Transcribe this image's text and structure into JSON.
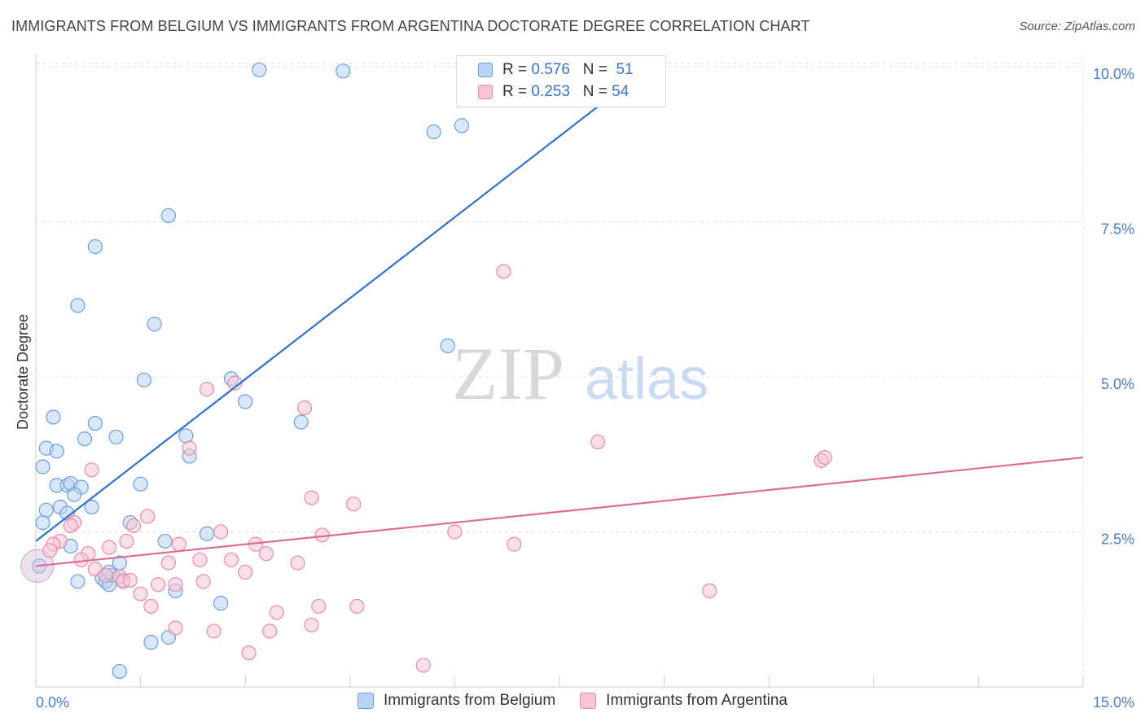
{
  "title": "IMMIGRANTS FROM BELGIUM VS IMMIGRANTS FROM ARGENTINA DOCTORATE DEGREE CORRELATION CHART",
  "source": "Source: ZipAtlas.com",
  "watermark": {
    "zip": "ZIP",
    "atlas": "atlas"
  },
  "legend": {
    "rows": [
      {
        "r_label": "R =",
        "r_value": "0.576",
        "n_label": "N =",
        "n_value": "51"
      },
      {
        "r_label": "R =",
        "r_value": "0.253",
        "n_label": "N =",
        "n_value": "54"
      }
    ]
  },
  "colors": {
    "belgium_fill": "#b9d3f5",
    "belgium_stroke": "#6a9ee0",
    "belgium_line": "#2f72c9",
    "argentina_fill": "#f7c5d4",
    "argentina_stroke": "#e88aa8",
    "argentina_line": "#e06b98",
    "tick_color": "#4a7cc9",
    "grid": "#dddddd"
  },
  "chart_data": {
    "type": "scatter",
    "ylabel": "Doctorate Degree",
    "xlim": [
      0,
      15
    ],
    "ylim": [
      0,
      10.5
    ],
    "x_ticks": [
      "0.0%",
      "15.0%"
    ],
    "y_ticks": [
      {
        "value": 2.5,
        "label": "2.5%"
      },
      {
        "value": 5.0,
        "label": "5.0%"
      },
      {
        "value": 7.5,
        "label": "7.5%"
      },
      {
        "value": 10.0,
        "label": "10.0%"
      }
    ],
    "series": [
      {
        "name": "Immigrants from Belgium",
        "points": [
          [
            3.2,
            9.95
          ],
          [
            4.4,
            9.93
          ],
          [
            5.7,
            8.95
          ],
          [
            6.1,
            9.05
          ],
          [
            1.9,
            7.6
          ],
          [
            0.85,
            7.1
          ],
          [
            0.6,
            6.15
          ],
          [
            1.7,
            5.85
          ],
          [
            5.9,
            5.5
          ],
          [
            1.55,
            4.95
          ],
          [
            2.8,
            4.97
          ],
          [
            3.0,
            4.6
          ],
          [
            0.25,
            4.35
          ],
          [
            0.85,
            4.25
          ],
          [
            3.8,
            4.27
          ],
          [
            0.7,
            4.0
          ],
          [
            1.15,
            4.03
          ],
          [
            2.15,
            4.05
          ],
          [
            0.15,
            3.85
          ],
          [
            0.3,
            3.8
          ],
          [
            2.2,
            3.72
          ],
          [
            0.1,
            3.55
          ],
          [
            0.3,
            3.25
          ],
          [
            0.45,
            3.25
          ],
          [
            0.5,
            3.28
          ],
          [
            0.65,
            3.22
          ],
          [
            0.55,
            3.1
          ],
          [
            1.5,
            3.27
          ],
          [
            0.15,
            2.85
          ],
          [
            0.35,
            2.9
          ],
          [
            0.45,
            2.8
          ],
          [
            0.8,
            2.9
          ],
          [
            0.1,
            2.65
          ],
          [
            1.35,
            2.65
          ],
          [
            2.45,
            2.47
          ],
          [
            0.5,
            2.27
          ],
          [
            1.85,
            2.35
          ],
          [
            1.2,
            2.0
          ],
          [
            0.05,
            1.95
          ],
          [
            0.95,
            1.75
          ],
          [
            1.0,
            1.7
          ],
          [
            1.05,
            1.65
          ],
          [
            1.1,
            1.8
          ],
          [
            1.05,
            1.85
          ],
          [
            1.25,
            1.72
          ],
          [
            0.6,
            1.7
          ],
          [
            2.0,
            1.55
          ],
          [
            2.65,
            1.35
          ],
          [
            1.9,
            0.8
          ],
          [
            1.65,
            0.72
          ],
          [
            1.2,
            0.25
          ]
        ],
        "trend": {
          "x": [
            0,
            8.5
          ],
          "y": [
            2.35,
            9.75
          ]
        },
        "bubble": {
          "x": 0.02,
          "y": 1.95
        }
      },
      {
        "name": "Immigrants from Argentina",
        "points": [
          [
            6.7,
            6.7
          ],
          [
            2.45,
            4.8
          ],
          [
            2.85,
            4.9
          ],
          [
            3.85,
            4.5
          ],
          [
            8.05,
            3.95
          ],
          [
            11.25,
            3.65
          ],
          [
            11.3,
            3.7
          ],
          [
            2.2,
            3.85
          ],
          [
            0.8,
            3.5
          ],
          [
            3.95,
            3.05
          ],
          [
            4.55,
            2.95
          ],
          [
            1.6,
            2.75
          ],
          [
            1.4,
            2.6
          ],
          [
            0.55,
            2.65
          ],
          [
            0.5,
            2.6
          ],
          [
            2.65,
            2.5
          ],
          [
            4.1,
            2.45
          ],
          [
            6.0,
            2.5
          ],
          [
            0.35,
            2.35
          ],
          [
            0.25,
            2.3
          ],
          [
            1.3,
            2.35
          ],
          [
            3.15,
            2.3
          ],
          [
            6.85,
            2.3
          ],
          [
            1.05,
            2.25
          ],
          [
            2.05,
            2.3
          ],
          [
            0.2,
            2.2
          ],
          [
            0.75,
            2.15
          ],
          [
            3.3,
            2.15
          ],
          [
            0.65,
            2.05
          ],
          [
            2.35,
            2.05
          ],
          [
            2.8,
            2.05
          ],
          [
            1.9,
            2.0
          ],
          [
            3.75,
            2.0
          ],
          [
            0.85,
            1.9
          ],
          [
            3.0,
            1.85
          ],
          [
            1.0,
            1.8
          ],
          [
            1.2,
            1.78
          ],
          [
            1.25,
            1.7
          ],
          [
            1.35,
            1.72
          ],
          [
            1.75,
            1.65
          ],
          [
            2.0,
            1.65
          ],
          [
            2.4,
            1.7
          ],
          [
            1.5,
            1.5
          ],
          [
            9.65,
            1.55
          ],
          [
            1.65,
            1.3
          ],
          [
            4.05,
            1.3
          ],
          [
            4.6,
            1.3
          ],
          [
            3.45,
            1.2
          ],
          [
            2.0,
            0.95
          ],
          [
            2.55,
            0.9
          ],
          [
            3.35,
            0.9
          ],
          [
            3.95,
            1.0
          ],
          [
            3.05,
            0.55
          ],
          [
            5.55,
            0.35
          ]
        ],
        "trend": {
          "x": [
            0,
            15
          ],
          "y": [
            1.95,
            3.7
          ]
        },
        "bubble": {
          "x": 0.02,
          "y": 1.95
        }
      }
    ]
  }
}
